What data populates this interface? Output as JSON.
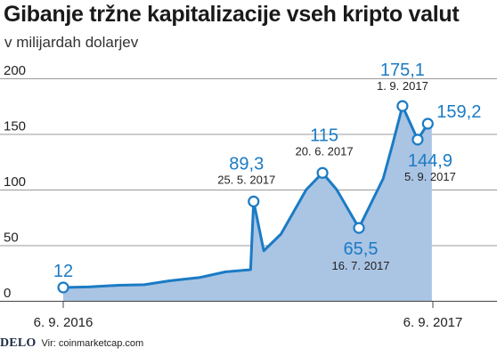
{
  "header": {
    "title": "Gibanje tržne kapitalizacije vseh kripto valut",
    "subtitle": "v milijardah dolarjev"
  },
  "footer": {
    "brand": "DELO",
    "source": "Vir: coinmarketcap.com"
  },
  "colors": {
    "line": "#1b7bc4",
    "area": "#aac4e4",
    "grid": "#9a9a9a",
    "value_text": "#1b7bc4"
  },
  "chart_data": {
    "type": "area",
    "title": "Gibanje tržne kapitalizacije vseh kripto valut",
    "subtitle": "v milijardah dolarjev",
    "ylim": [
      0,
      200
    ],
    "yticks": [
      "0",
      "50",
      "100",
      "150",
      "200"
    ],
    "grid": true,
    "xtick_labels": [
      {
        "label": "6. 9. 2016",
        "x": 0
      },
      {
        "label": "6. 9. 2017",
        "x": 365
      }
    ],
    "x": [
      0,
      25,
      55,
      80,
      105,
      135,
      160,
      185,
      188,
      198,
      215,
      240,
      256,
      270,
      292,
      316,
      325,
      335,
      350,
      360,
      364
    ],
    "values": [
      12,
      12.5,
      14,
      14.5,
      18,
      21,
      26,
      28,
      89.3,
      45,
      60,
      100,
      115,
      100,
      65.5,
      110,
      140,
      175.1,
      144.9,
      159.2,
      159.2
    ],
    "annotations": [
      {
        "x": 0,
        "y": 12,
        "value": "12",
        "date": ""
      },
      {
        "x": 188,
        "y": 89.3,
        "value": "89,3",
        "date": "25. 5. 2017"
      },
      {
        "x": 256,
        "y": 115,
        "value": "115",
        "date": "20. 6. 2017"
      },
      {
        "x": 292,
        "y": 65.5,
        "value": "65,5",
        "date": "16. 7. 2017"
      },
      {
        "x": 335,
        "y": 175.1,
        "value": "175,1",
        "date": "1. 9. 2017"
      },
      {
        "x": 350,
        "y": 144.9,
        "value": "144,9",
        "date": "5. 9. 2017"
      },
      {
        "x": 360,
        "y": 159.2,
        "value": "159,2",
        "date": ""
      }
    ]
  }
}
